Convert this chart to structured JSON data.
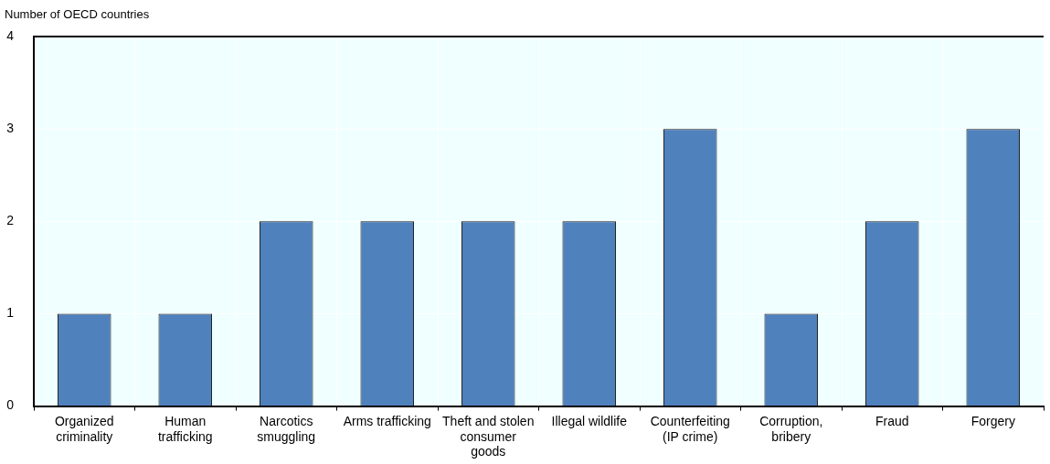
{
  "chart_data": {
    "type": "bar",
    "ylabel": "Number of OECD countries",
    "categories": [
      "Organized criminality",
      "Human trafficking",
      "Narcotics smuggling",
      "Arms trafficking",
      "Theft and stolen consumer goods",
      "Illegal wildlife",
      "Counterfeiting (IP crime)",
      "Corruption, bribery",
      "Fraud",
      "Forgery"
    ],
    "values": [
      1,
      1,
      2,
      2,
      2,
      2,
      3,
      1,
      2,
      3
    ],
    "color": "#4f81bd",
    "ylim": [
      0,
      4
    ],
    "yticks": [
      0,
      1,
      2,
      3,
      4
    ],
    "grid": true,
    "legend": false
  }
}
